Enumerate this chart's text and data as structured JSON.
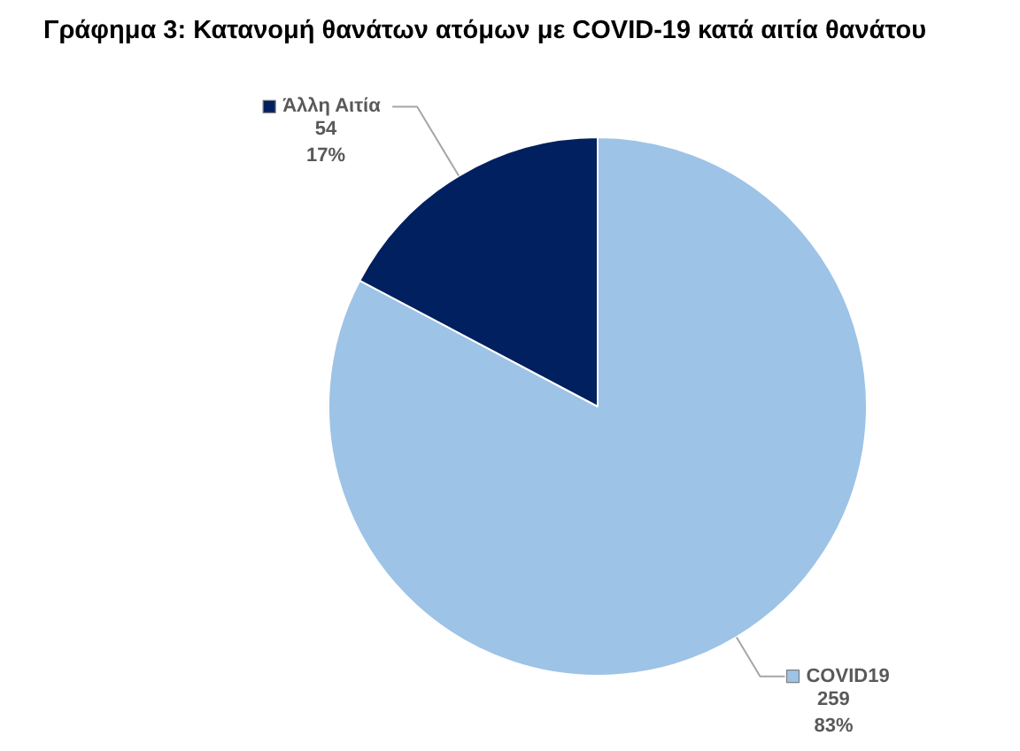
{
  "chart_data": {
    "type": "pie",
    "title": "Γράφημα 3: Κατανομή θανάτων ατόμων με COVID-19 κατά αιτία θανάτου",
    "categories": [
      "COVID19",
      "Άλλη Αιτία"
    ],
    "values": [
      259,
      54
    ],
    "colors": [
      "#9dc3e6",
      "#002060"
    ],
    "value_labels": [
      "259\n83%",
      "54\n17%"
    ],
    "legend": true
  }
}
